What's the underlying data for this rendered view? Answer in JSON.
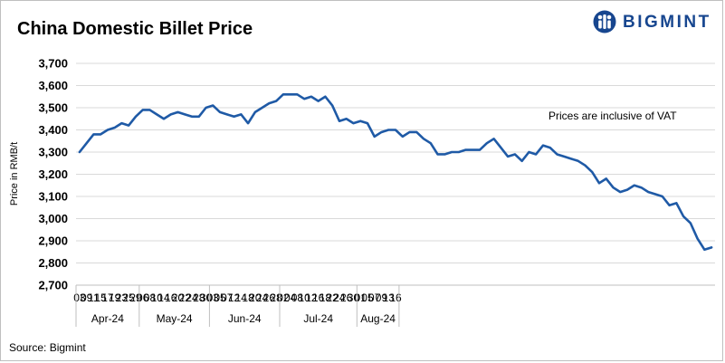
{
  "header": {
    "title": "China Domestic Billet Price",
    "brand": "BIGMINT",
    "brand_color": "#17468f"
  },
  "footer": {
    "source": "Source: Bigmint"
  },
  "chart_data": {
    "type": "line",
    "title": "China Domestic Billet Price",
    "xlabel": "",
    "ylabel": "Price in RMB/t",
    "annotation": "Prices are inclusive of VAT",
    "ylim": [
      2700,
      3700
    ],
    "y_ticks": [
      2700,
      2800,
      2900,
      3000,
      3100,
      3200,
      3300,
      3400,
      3500,
      3600,
      3700
    ],
    "y_tick_labels": [
      "2,700",
      "2,800",
      "2,900",
      "3,000",
      "3,100",
      "3,200",
      "3,300",
      "3,400",
      "3,500",
      "3,600",
      "3,700"
    ],
    "grid": "horizontal",
    "legend": "none",
    "line_color": "#1f5aa6",
    "months": [
      {
        "label": "Apr-24",
        "days": [
          "03",
          "09",
          "11",
          "15",
          "17",
          "19",
          "23",
          "25",
          "29"
        ]
      },
      {
        "label": "May-24",
        "days": [
          "06",
          "08",
          "10",
          "14",
          "16",
          "20",
          "22",
          "24",
          "28",
          "30"
        ]
      },
      {
        "label": "Jun-24",
        "days": [
          "03",
          "05",
          "07",
          "12",
          "14",
          "18",
          "20",
          "24",
          "26",
          "28"
        ]
      },
      {
        "label": "Jul-24",
        "days": [
          "02",
          "04",
          "08",
          "10",
          "12",
          "16",
          "18",
          "22",
          "24",
          "26",
          "30"
        ]
      },
      {
        "label": "Aug-24",
        "days": [
          "01",
          "05",
          "07",
          "09",
          "13",
          "16"
        ]
      }
    ],
    "series": [
      {
        "values": [
          3300,
          3340,
          3380,
          3380,
          3400,
          3410,
          3430,
          3420,
          3460,
          3490,
          3490,
          3470,
          3450,
          3470,
          3480,
          3470,
          3460,
          3460,
          3500,
          3510,
          3480,
          3470,
          3460,
          3470,
          3430,
          3480,
          3500,
          3520,
          3530,
          3560,
          3560,
          3560,
          3540,
          3550,
          3530,
          3550,
          3510,
          3440,
          3450,
          3430,
          3440,
          3430,
          3370,
          3390,
          3400,
          3400,
          3370,
          3390,
          3390,
          3360,
          3340,
          3290,
          3290,
          3300,
          3300,
          3310,
          3310,
          3310,
          3340,
          3360,
          3320,
          3280,
          3290,
          3260,
          3300,
          3290,
          3330,
          3320,
          3290,
          3280,
          3270,
          3260,
          3240,
          3210,
          3160,
          3180,
          3140,
          3120,
          3130,
          3150,
          3140,
          3120,
          3110,
          3100,
          3060,
          3070,
          3010,
          2980,
          2910,
          2860,
          2870
        ]
      }
    ]
  }
}
